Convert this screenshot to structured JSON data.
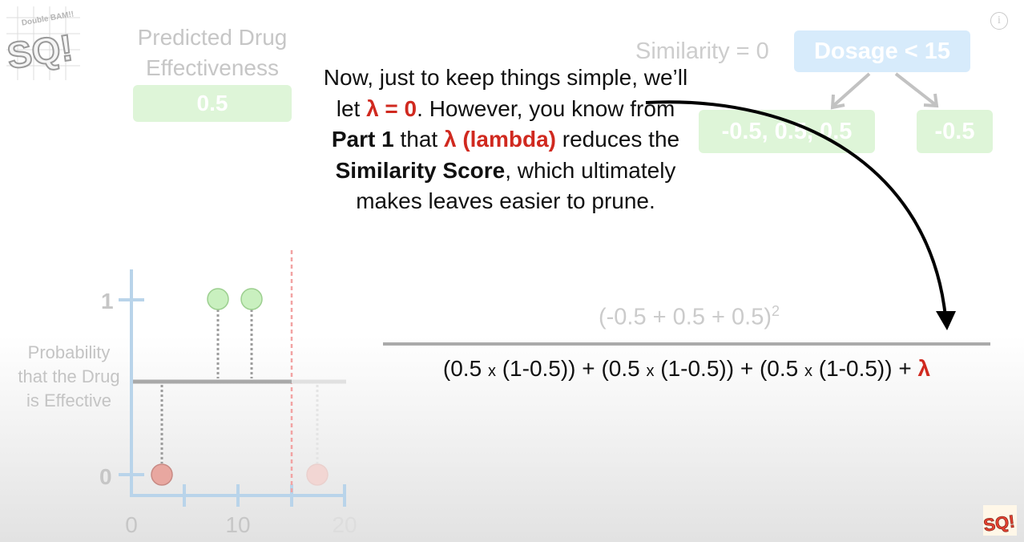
{
  "logo": {
    "text_top": "Double BAM!!",
    "text_main": "SQ!"
  },
  "info_icon": "i",
  "prediction": {
    "title_line1": "Predicted Drug",
    "title_line2": "Effectiveness",
    "value": "0.5"
  },
  "tree": {
    "similarity_label": "Similarity = 0",
    "root": "Dosage < 15",
    "left_leaf": "-0.5, 0.5, 0.5",
    "right_leaf": "-0.5"
  },
  "narration": {
    "p1": "Now, just to keep things simple, we’ll let ",
    "lambda_eq": "λ = 0",
    "p2": ". However, you know from ",
    "part1": "Part 1",
    "p3": " that ",
    "lambda_name": "λ (lambda)",
    "p4": " reduces the ",
    "sim_score": "Similarity Score",
    "p5": ", which ultimately makes leaves easier to prune."
  },
  "formula": {
    "numerator": "(-0.5 + 0.5 + 0.5)",
    "numerator_exp": "2",
    "term_a": "(0.5 ",
    "times": "x",
    "term_b": " (1-0.5))",
    "plus": " + ",
    "lambda": "λ"
  },
  "graph": {
    "y_label": "Probability that the Drug is Effective",
    "y_ticks": [
      "1",
      "0"
    ],
    "x_ticks": [
      "0",
      "10",
      "20"
    ]
  },
  "chart_data": {
    "type": "scatter",
    "x_ticks": [
      0,
      10,
      20
    ],
    "y_ticks": [
      0,
      1
    ],
    "points": [
      {
        "x": 3,
        "y": 0,
        "color": "#e8a7a0"
      },
      {
        "x": 8,
        "y": 1,
        "color": "#c9f0bf"
      },
      {
        "x": 11,
        "y": 1,
        "color": "#c9f0bf"
      },
      {
        "x": 17,
        "y": 0,
        "color": "#f2d6d3"
      }
    ],
    "prediction_line": 0.5,
    "split_threshold": 15
  },
  "colors": {
    "red_accent": "#d0291f",
    "green_box": "#def5d8",
    "blue_box": "#d7ebfb"
  }
}
